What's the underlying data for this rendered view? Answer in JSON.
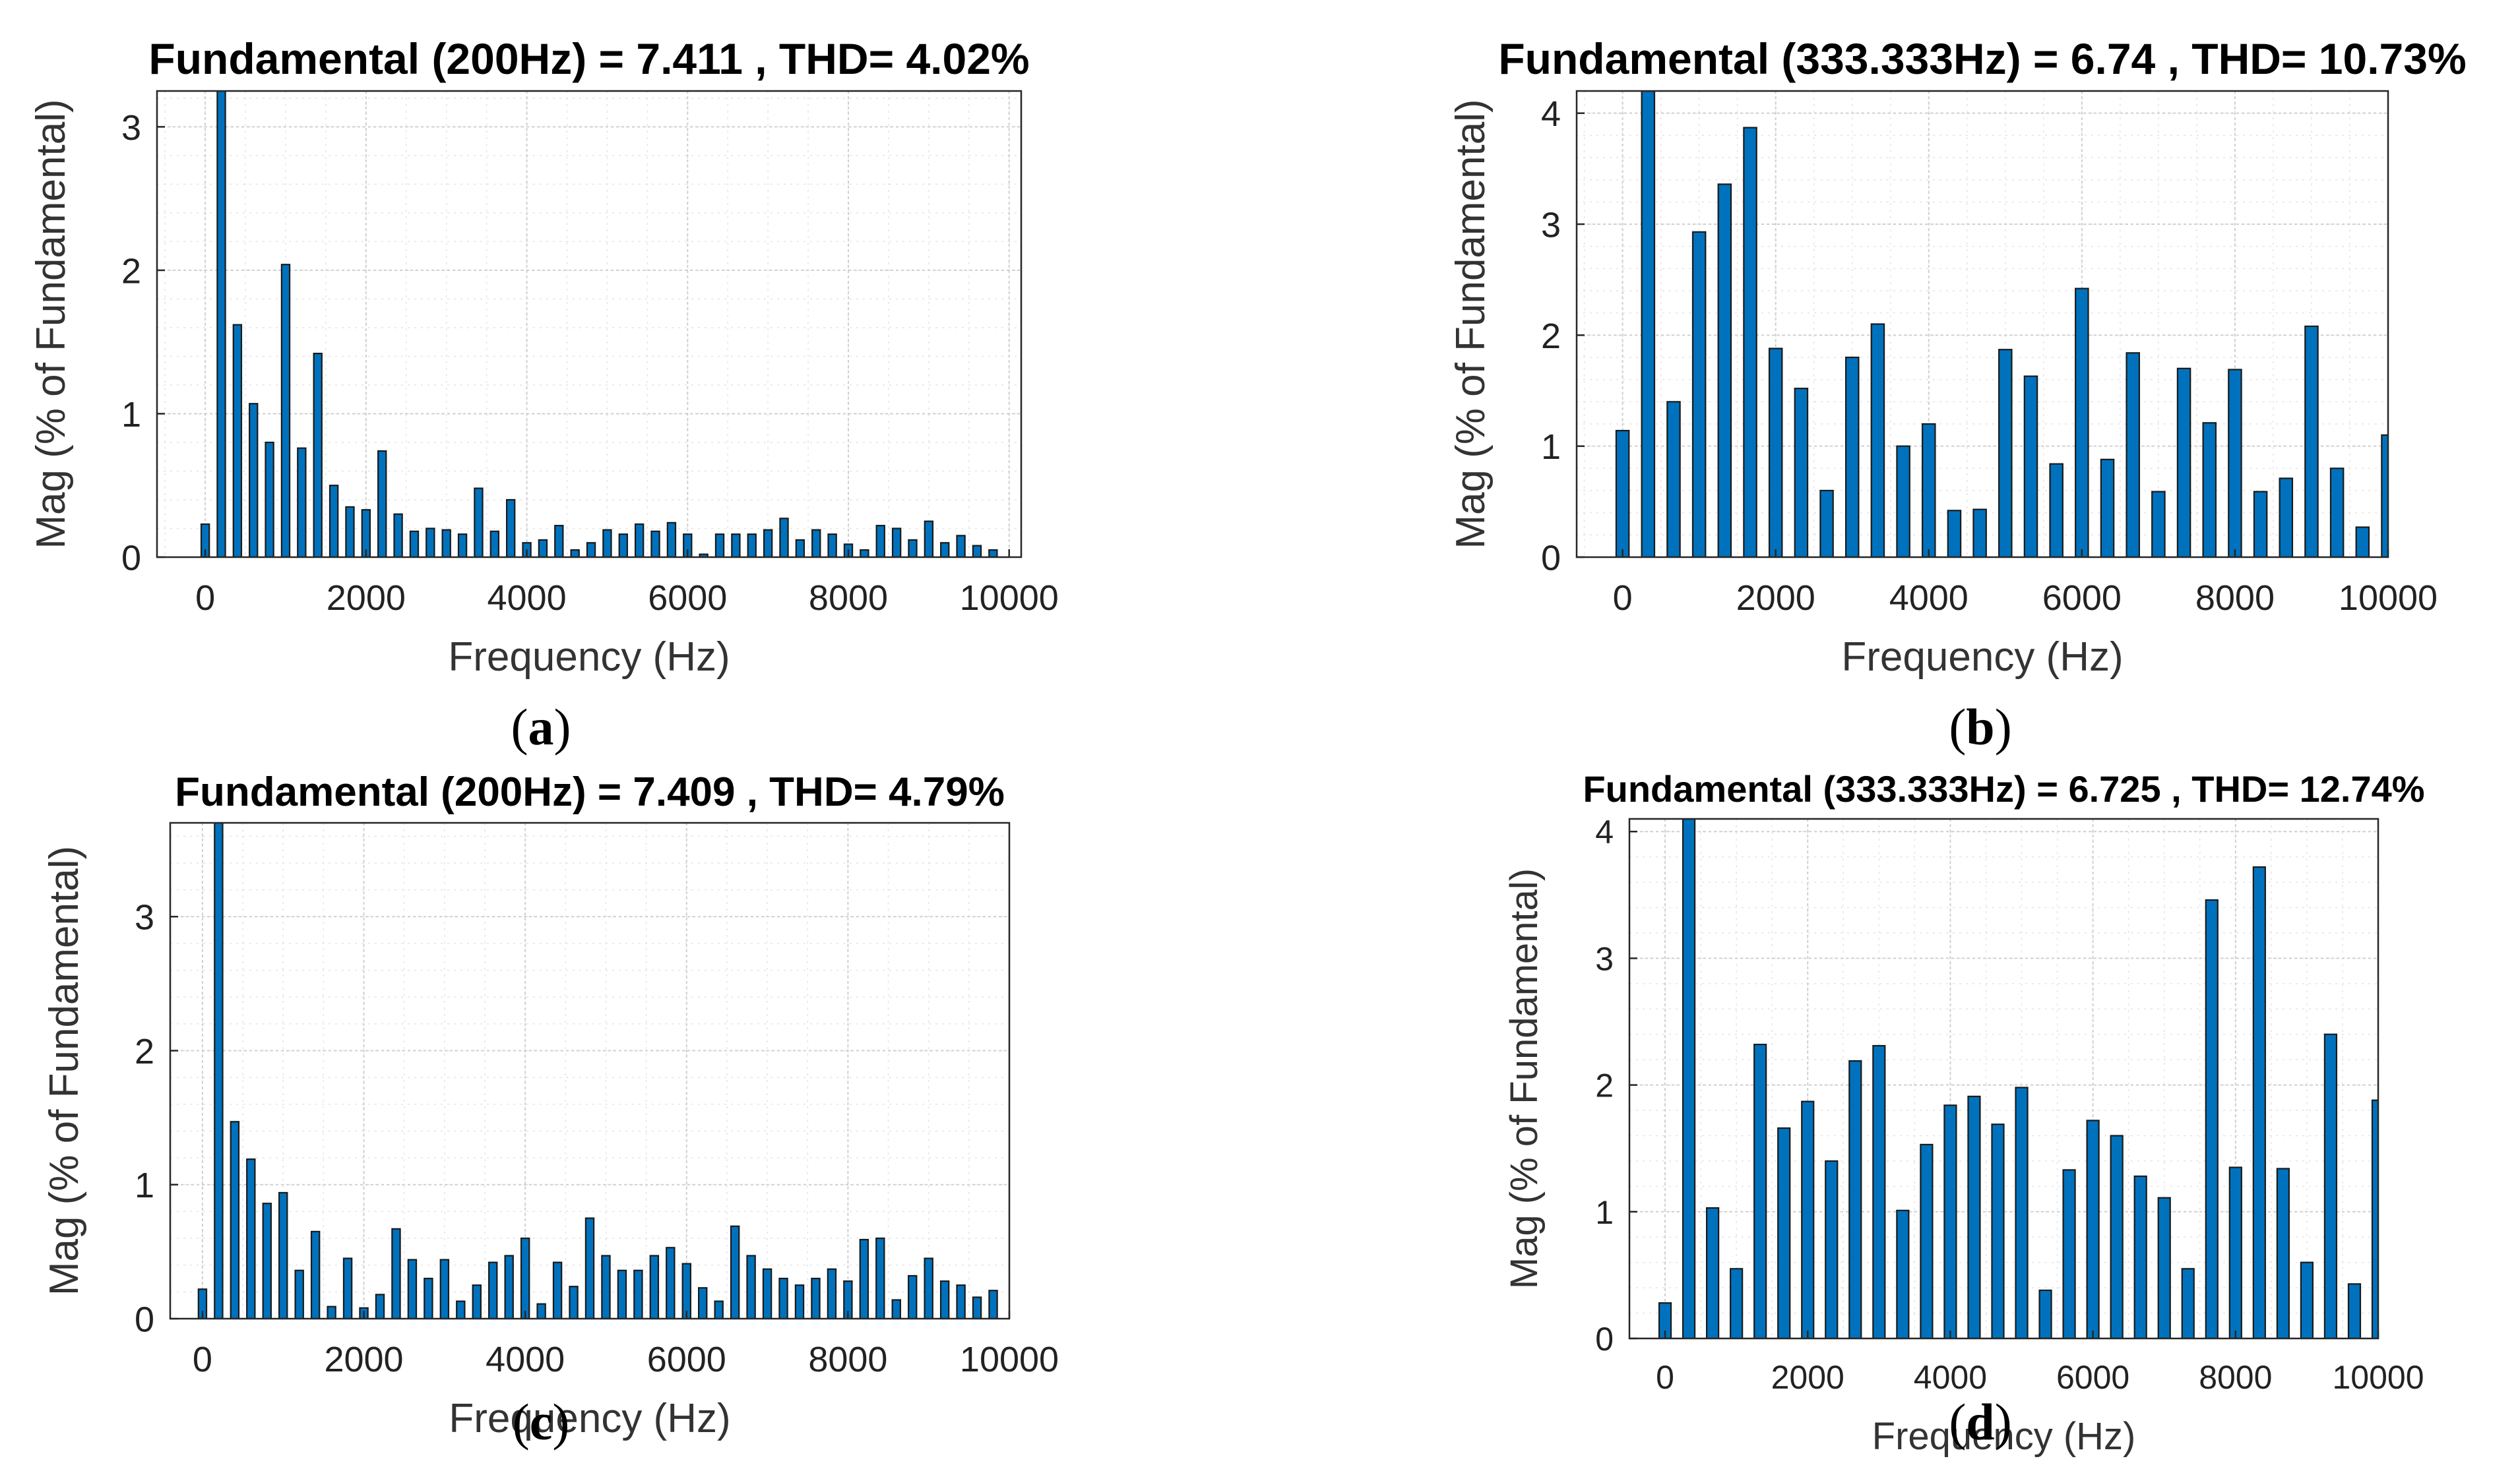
{
  "figure": {
    "panels": [
      {
        "id": "a",
        "caption": "a",
        "chart_data": {
          "type": "bar",
          "title": "Fundamental (200Hz) = 7.411 , THD= 4.02%",
          "xlabel": "Frequency (Hz)",
          "ylabel": "Mag (% of Fundamental)",
          "xlim": [
            -600,
            10150
          ],
          "ylim": [
            0,
            3.25
          ],
          "xticks": [
            0,
            2000,
            4000,
            6000,
            8000,
            10000
          ],
          "xtick_labels": [
            "0",
            "2000",
            "4000",
            "6000",
            "8000",
            "10000"
          ],
          "yticks": [
            0,
            1,
            2,
            3
          ],
          "grid": true,
          "bar_color": "#0072BD",
          "step": 200,
          "x": [
            0,
            200,
            400,
            600,
            800,
            1000,
            1200,
            1400,
            1600,
            1800,
            2000,
            2200,
            2400,
            2600,
            2800,
            3000,
            3200,
            3400,
            3600,
            3800,
            4000,
            4200,
            4400,
            4600,
            4800,
            5000,
            5200,
            5400,
            5600,
            5800,
            6000,
            6200,
            6400,
            6600,
            6800,
            7000,
            7200,
            7400,
            7600,
            7800,
            8000,
            8200,
            8400,
            8600,
            8800,
            9000,
            9200,
            9400,
            9600,
            9800
          ],
          "values": [
            0.23,
            3.25,
            1.62,
            1.07,
            0.8,
            2.04,
            0.76,
            1.42,
            0.5,
            0.35,
            0.33,
            0.74,
            0.3,
            0.18,
            0.2,
            0.19,
            0.16,
            0.48,
            0.18,
            0.4,
            0.1,
            0.12,
            0.22,
            0.05,
            0.1,
            0.19,
            0.16,
            0.23,
            0.18,
            0.24,
            0.16,
            0.02,
            0.16,
            0.16,
            0.16,
            0.19,
            0.27,
            0.12,
            0.19,
            0.16,
            0.09,
            0.05,
            0.22,
            0.2,
            0.12,
            0.25,
            0.1,
            0.15,
            0.08,
            0.05
          ]
        }
      },
      {
        "id": "b",
        "caption": "b",
        "chart_data": {
          "type": "bar",
          "title": "Fundamental (333.333Hz) = 6.74 , THD= 10.73%",
          "xlabel": "Frequency (Hz)",
          "ylabel": "Mag (% of Fundamental)",
          "xlim": [
            -600,
            10000
          ],
          "ylim": [
            0,
            4.2
          ],
          "xticks": [
            0,
            2000,
            4000,
            6000,
            8000,
            10000
          ],
          "xtick_labels": [
            "0",
            "2000",
            "4000",
            "6000",
            "8000",
            "10000"
          ],
          "yticks": [
            0,
            1,
            2,
            3,
            4
          ],
          "grid": true,
          "bar_color": "#0072BD",
          "step": 333.333,
          "x": [
            0,
            333.3,
            666.7,
            1000,
            1333.3,
            1666.7,
            2000,
            2333.3,
            2666.7,
            3000,
            3333.3,
            3666.7,
            4000,
            4333.3,
            4666.7,
            5000,
            5333.3,
            5666.7,
            6000,
            6333.3,
            6666.7,
            7000,
            7333.3,
            7666.7,
            8000,
            8333.3,
            8666.7,
            9000,
            9333.3,
            9666.7,
            10000
          ],
          "values": [
            1.14,
            4.2,
            1.4,
            2.93,
            3.36,
            3.87,
            1.88,
            1.52,
            0.6,
            1.8,
            2.1,
            1.0,
            1.2,
            0.42,
            0.43,
            1.87,
            1.63,
            0.84,
            2.42,
            0.88,
            1.84,
            0.59,
            1.7,
            1.21,
            1.69,
            0.59,
            0.71,
            2.08,
            0.8,
            0.27,
            1.1
          ]
        }
      },
      {
        "id": "c",
        "caption": "c",
        "chart_data": {
          "type": "bar",
          "title": "Fundamental (200Hz) = 7.409 , THD= 4.79%",
          "xlabel": "Frequency (Hz)",
          "ylabel": "Mag (% of Fundamental)",
          "xlim": [
            -400,
            10000
          ],
          "ylim": [
            0,
            3.7
          ],
          "xticks": [
            0,
            2000,
            4000,
            6000,
            8000,
            10000
          ],
          "xtick_labels": [
            "0",
            "2000",
            "4000",
            "6000",
            "8000",
            "10000"
          ],
          "yticks": [
            0,
            1,
            2,
            3
          ],
          "grid": true,
          "bar_color": "#0072BD",
          "step": 200,
          "x": [
            0,
            200,
            400,
            600,
            800,
            1000,
            1200,
            1400,
            1600,
            1800,
            2000,
            2200,
            2400,
            2600,
            2800,
            3000,
            3200,
            3400,
            3600,
            3800,
            4000,
            4200,
            4400,
            4600,
            4800,
            5000,
            5200,
            5400,
            5600,
            5800,
            6000,
            6200,
            6400,
            6600,
            6800,
            7000,
            7200,
            7400,
            7600,
            7800,
            8000,
            8200,
            8400,
            8600,
            8800,
            9000,
            9200,
            9400,
            9600,
            9800
          ],
          "values": [
            0.22,
            3.7,
            1.47,
            1.19,
            0.86,
            0.94,
            0.36,
            0.65,
            0.09,
            0.45,
            0.08,
            0.18,
            0.67,
            0.44,
            0.3,
            0.44,
            0.13,
            0.25,
            0.42,
            0.47,
            0.6,
            0.11,
            0.42,
            0.24,
            0.75,
            0.47,
            0.36,
            0.36,
            0.47,
            0.53,
            0.41,
            0.23,
            0.13,
            0.69,
            0.47,
            0.37,
            0.3,
            0.25,
            0.3,
            0.37,
            0.28,
            0.59,
            0.6,
            0.14,
            0.32,
            0.45,
            0.28,
            0.25,
            0.16,
            0.21
          ]
        }
      },
      {
        "id": "d",
        "caption": "d",
        "chart_data": {
          "type": "bar",
          "title": "Fundamental (333.333Hz) = 6.725 , THD= 12.74%",
          "xlabel": "Frequency (Hz)",
          "ylabel": "Mag (% of Fundamental)",
          "xlim": [
            -500,
            10000
          ],
          "ylim": [
            0,
            4.1
          ],
          "xticks": [
            0,
            2000,
            4000,
            6000,
            8000,
            10000
          ],
          "xtick_labels": [
            "0",
            "2000",
            "4000",
            "6000",
            "8000",
            "10000"
          ],
          "yticks": [
            0,
            1,
            2,
            3,
            4
          ],
          "grid": true,
          "bar_color": "#0072BD",
          "step": 333.333,
          "x": [
            0,
            333.3,
            666.7,
            1000,
            1333.3,
            1666.7,
            2000,
            2333.3,
            2666.7,
            3000,
            3333.3,
            3666.7,
            4000,
            4333.3,
            4666.7,
            5000,
            5333.3,
            5666.7,
            6000,
            6333.3,
            6666.7,
            7000,
            7333.3,
            7666.7,
            8000,
            8333.3,
            8666.7,
            9000,
            9333.3,
            9666.7,
            10000
          ],
          "values": [
            0.28,
            4.1,
            1.03,
            0.55,
            2.32,
            1.66,
            1.87,
            1.4,
            2.19,
            2.31,
            1.01,
            1.53,
            1.84,
            1.91,
            1.69,
            1.98,
            0.38,
            1.33,
            1.72,
            1.6,
            1.28,
            1.11,
            0.55,
            3.46,
            1.35,
            3.72,
            1.34,
            0.6,
            2.4,
            0.43,
            1.88
          ]
        }
      }
    ]
  }
}
